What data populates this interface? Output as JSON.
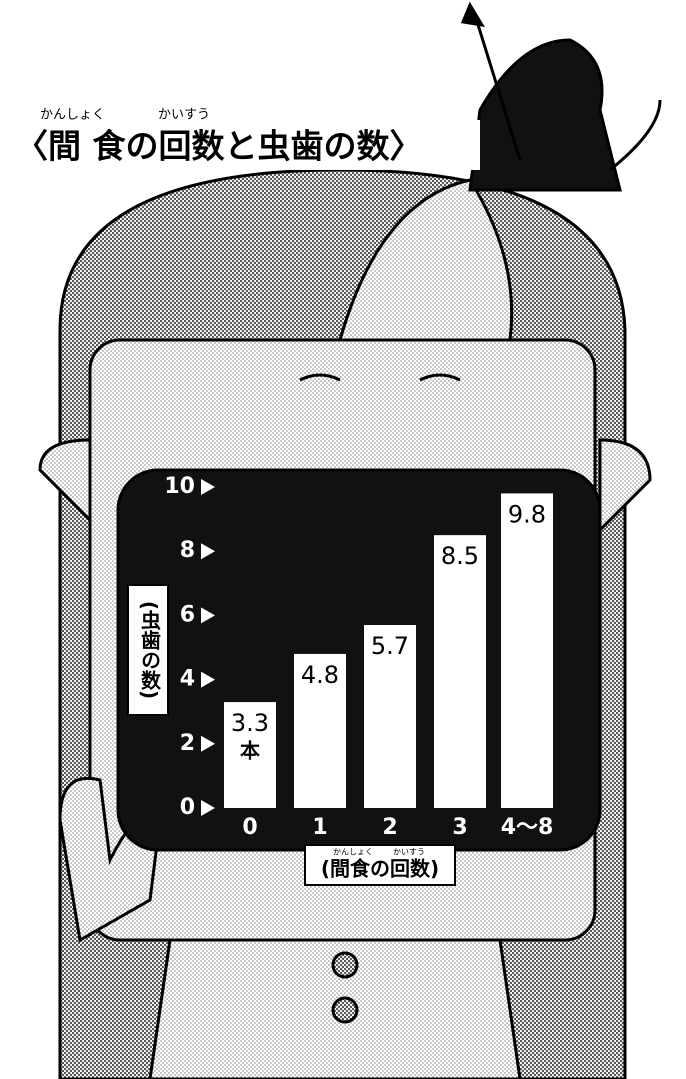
{
  "chart_data": {
    "type": "bar",
    "title": "〈間 食の回数と虫歯の数〉",
    "title_furigana": [
      "かんしょく",
      "かいすう"
    ],
    "ylabel": "(虫歯の数)",
    "xlabel": "(間食の回数)",
    "xlabel_furigana": [
      "かんしょく",
      "かいすう"
    ],
    "categories": [
      "0",
      "1",
      "2",
      "3",
      "4〜8"
    ],
    "values": [
      3.3,
      4.8,
      5.7,
      8.5,
      9.8
    ],
    "unit": "本",
    "color": "#ffffff",
    "ylim": [
      0,
      10
    ],
    "yticks": [
      0,
      2,
      4,
      6,
      8,
      10
    ]
  }
}
